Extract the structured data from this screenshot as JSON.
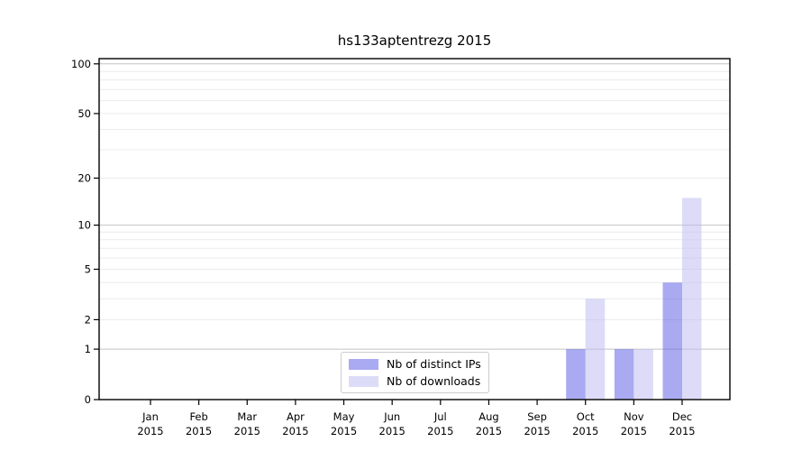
{
  "chart_data": {
    "type": "bar",
    "title": "hs133aptentrezg 2015",
    "categories": [
      "Jan 2015",
      "Feb 2015",
      "Mar 2015",
      "Apr 2015",
      "May 2015",
      "Jun 2015",
      "Jul 2015",
      "Aug 2015",
      "Sep 2015",
      "Oct 2015",
      "Nov 2015",
      "Dec 2015"
    ],
    "series": [
      {
        "name": "Nb of distinct IPs",
        "legend_color": "#aaaaf2",
        "fill": "rgba(85,85,229,0.5)",
        "values": [
          0,
          0,
          0,
          0,
          0,
          0,
          0,
          0,
          0,
          1,
          1,
          4
        ]
      },
      {
        "name": "Nb of downloads",
        "legend_color": "#dcdcf8",
        "fill": "rgba(185,185,241,0.5)",
        "values": [
          0,
          0,
          0,
          0,
          0,
          0,
          0,
          0,
          0,
          3,
          1,
          15
        ]
      }
    ],
    "yscale": "log10(value+1)",
    "ylim": [
      0,
      108
    ],
    "y_ticks": [
      0,
      1,
      2,
      5,
      10,
      20,
      50,
      100
    ],
    "y_minor_gridlines": [
      2,
      3,
      4,
      5,
      6,
      7,
      8,
      9,
      20,
      30,
      40,
      50,
      60,
      70,
      80,
      90
    ],
    "y_major_gridlines": [
      1,
      10,
      100
    ],
    "grid": true,
    "legend_position": "lower center inside",
    "colors": {
      "grid_minor": "#ececec",
      "grid_major": "#c3c3c3",
      "axis": "#000000",
      "background": "#ffffff",
      "legend_border": "#cccccc"
    }
  }
}
